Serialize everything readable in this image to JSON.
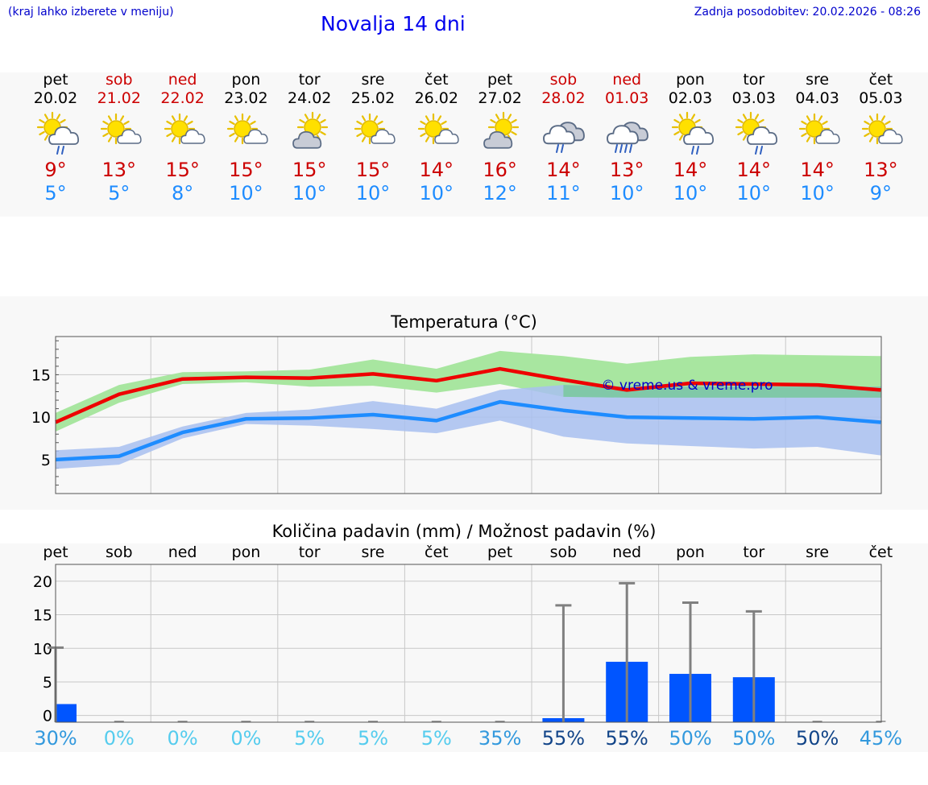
{
  "header": {
    "hint": "(kraj lahko izberete v meniju)",
    "title": "Novalja 14 dni",
    "updated_label": "Zadnja posodobitev:",
    "updated_value": "20.02.2026 - 08:26"
  },
  "days": [
    {
      "name": "pet",
      "date": "20.02",
      "max": "9°",
      "min": "5°",
      "weekend": false,
      "icon": "sun-cloud-rain-icon"
    },
    {
      "name": "sob",
      "date": "21.02",
      "max": "13°",
      "min": "5°",
      "weekend": true,
      "icon": "sun-small-cloud-icon"
    },
    {
      "name": "ned",
      "date": "22.02",
      "max": "15°",
      "min": "8°",
      "weekend": true,
      "icon": "sun-small-cloud-icon"
    },
    {
      "name": "pon",
      "date": "23.02",
      "max": "15°",
      "min": "10°",
      "weekend": false,
      "icon": "sun-small-cloud-icon"
    },
    {
      "name": "tor",
      "date": "24.02",
      "max": "15°",
      "min": "10°",
      "weekend": false,
      "icon": "sun-cloud-icon"
    },
    {
      "name": "sre",
      "date": "25.02",
      "max": "15°",
      "min": "10°",
      "weekend": false,
      "icon": "sun-small-cloud-icon"
    },
    {
      "name": "čet",
      "date": "26.02",
      "max": "14°",
      "min": "10°",
      "weekend": false,
      "icon": "sun-small-cloud-icon"
    },
    {
      "name": "pet",
      "date": "27.02",
      "max": "16°",
      "min": "12°",
      "weekend": false,
      "icon": "sun-cloud-icon"
    },
    {
      "name": "sob",
      "date": "28.02",
      "max": "14°",
      "min": "11°",
      "weekend": true,
      "icon": "cloud-rain-icon"
    },
    {
      "name": "ned",
      "date": "01.03",
      "max": "13°",
      "min": "10°",
      "weekend": true,
      "icon": "cloud-heavy-rain-icon"
    },
    {
      "name": "pon",
      "date": "02.03",
      "max": "14°",
      "min": "10°",
      "weekend": false,
      "icon": "sun-cloud-rain-icon"
    },
    {
      "name": "tor",
      "date": "03.03",
      "max": "14°",
      "min": "10°",
      "weekend": false,
      "icon": "sun-cloud-rain-icon"
    },
    {
      "name": "sre",
      "date": "04.03",
      "max": "14°",
      "min": "10°",
      "weekend": false,
      "icon": "sun-small-cloud-icon"
    },
    {
      "name": "čet",
      "date": "05.03",
      "max": "13°",
      "min": "9°",
      "weekend": false,
      "icon": "sun-small-cloud-icon"
    }
  ],
  "colors": {
    "max": "#ee0000",
    "min": "#1e8cff",
    "max_band": "#a8e6a0",
    "min_band": "#a8c0f0",
    "overlap": "#80c8a8",
    "bar": "#0055ff",
    "whisker": "#808080"
  },
  "chart_data": [
    {
      "type": "line",
      "title": "Temperatura (°C)",
      "ylabel": "°C",
      "ylim": [
        1,
        19.5
      ],
      "yticks": [
        5,
        10,
        15
      ],
      "categories": [
        "20.02",
        "21.02",
        "22.02",
        "23.02",
        "24.02",
        "25.02",
        "26.02",
        "27.02",
        "28.02",
        "01.03",
        "02.03",
        "03.03",
        "04.03",
        "05.03"
      ],
      "watermark": "© vreme.us & vreme.pro",
      "series": [
        {
          "name": "max",
          "values": [
            9.4,
            12.7,
            14.5,
            14.7,
            14.6,
            15.1,
            14.3,
            15.7,
            14.4,
            13.2,
            14.0,
            13.9,
            13.8,
            13.2
          ],
          "band_low": [
            8.3,
            11.7,
            13.9,
            14.1,
            13.6,
            13.7,
            12.9,
            13.9,
            12.4,
            12.3,
            12.3,
            12.3,
            12.3,
            12.3
          ],
          "band_high": [
            10.5,
            13.8,
            15.3,
            15.4,
            15.6,
            16.8,
            15.7,
            17.8,
            17.2,
            16.3,
            17.1,
            17.4,
            17.3,
            17.2
          ]
        },
        {
          "name": "min",
          "values": [
            5.0,
            5.4,
            8.2,
            9.8,
            9.9,
            10.3,
            9.6,
            11.8,
            10.8,
            10.0,
            9.9,
            9.8,
            10.0,
            9.4
          ],
          "band_low": [
            3.9,
            4.4,
            7.5,
            9.2,
            9.0,
            8.6,
            8.1,
            9.6,
            7.7,
            6.9,
            6.6,
            6.3,
            6.5,
            5.5
          ],
          "band_high": [
            6.1,
            6.5,
            8.9,
            10.5,
            10.9,
            11.9,
            11.0,
            13.2,
            13.8,
            13.6,
            13.6,
            13.6,
            13.6,
            13.6
          ]
        }
      ]
    },
    {
      "type": "bar",
      "title": "Količina padavin (mm) / Možnost padavin (%)",
      "ylabel": "mm",
      "ylim": [
        -1,
        22.5
      ],
      "yticks": [
        0,
        5,
        10,
        15,
        20
      ],
      "categories": [
        "pet",
        "sob",
        "ned",
        "pon",
        "tor",
        "sre",
        "čet",
        "pet",
        "sob",
        "ned",
        "pon",
        "tor",
        "sre",
        "čet"
      ],
      "values": [
        2.7,
        0,
        0,
        0,
        0,
        0,
        0,
        0,
        0.6,
        9.0,
        7.2,
        6.7,
        0,
        0
      ],
      "error_high": [
        11.1,
        0,
        0,
        0,
        0,
        0,
        0,
        0,
        17.4,
        20.7,
        17.8,
        16.5,
        0,
        0
      ],
      "probability": [
        "30%",
        "0%",
        "0%",
        "0%",
        "5%",
        "5%",
        "5%",
        "35%",
        "55%",
        "55%",
        "50%",
        "50%",
        "50%",
        "45%"
      ],
      "probability_colors": [
        "#3399dd",
        "#55ccee",
        "#55ccee",
        "#55ccee",
        "#55ccee",
        "#55ccee",
        "#55ccee",
        "#3399dd",
        "#114488",
        "#114488",
        "#3399dd",
        "#3399dd",
        "#114488",
        "#3399dd"
      ]
    }
  ]
}
